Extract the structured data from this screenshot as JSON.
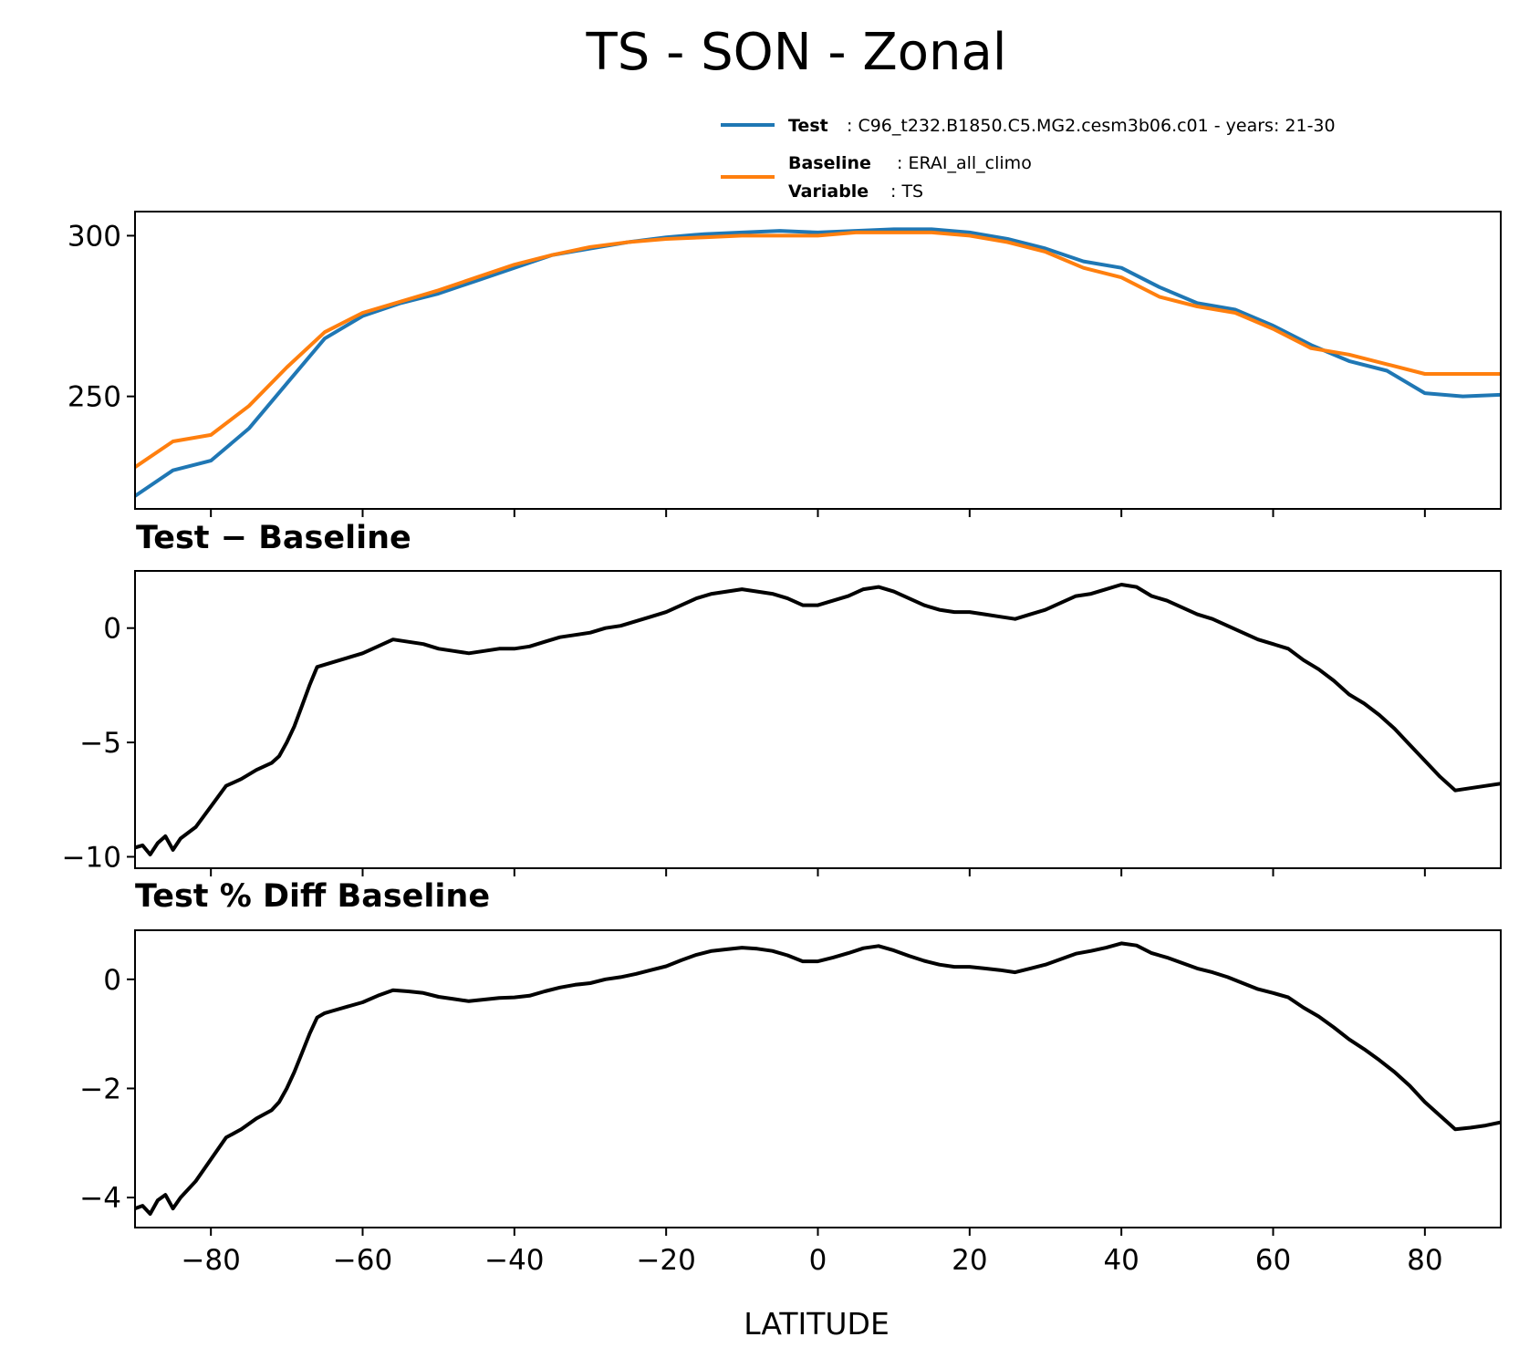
{
  "figure": {
    "title": "TS - SON - Zonal"
  },
  "legend": {
    "test_key": "Test",
    "test_value": ": C96_t232.B1850.C5.MG2.cesm3b06.c01 - years: 21-30",
    "baseline_key": "Baseline",
    "baseline_value": ": ERAI_all_climo",
    "variable_key": "Variable",
    "variable_value": ": TS"
  },
  "colors": {
    "test": "#1f77b4",
    "baseline": "#ff7f0e",
    "diff": "#000000"
  },
  "chart_data": [
    {
      "type": "line",
      "title": "",
      "xlabel": "",
      "ylabel": "",
      "xlim": [
        -90,
        90
      ],
      "ylim": [
        215,
        307.5
      ],
      "yticks": [
        250,
        300
      ],
      "grid": false,
      "legend_placement": "above plot, right",
      "x": [
        -90,
        -85,
        -80,
        -75,
        -70,
        -65,
        -60,
        -55,
        -50,
        -45,
        -40,
        -35,
        -30,
        -25,
        -20,
        -15,
        -10,
        -5,
        0,
        5,
        10,
        15,
        20,
        25,
        30,
        35,
        40,
        45,
        50,
        55,
        60,
        65,
        70,
        75,
        80,
        85,
        90
      ],
      "series": [
        {
          "name": "Test",
          "color": "#1f77b4",
          "values": [
            219,
            227,
            230,
            240,
            254,
            268,
            275,
            279,
            282,
            286,
            290,
            294,
            296,
            298,
            299.5,
            300.5,
            301,
            301.5,
            301,
            301.5,
            302,
            302,
            301,
            299,
            296,
            292,
            290,
            284,
            279,
            277,
            272,
            266,
            261,
            258,
            251,
            250,
            250.5
          ]
        },
        {
          "name": "Baseline",
          "color": "#ff7f0e",
          "values": [
            228,
            236,
            238,
            247,
            259,
            270,
            276,
            279.5,
            283,
            287,
            291,
            294,
            296.5,
            298,
            299,
            299.5,
            300,
            300,
            300,
            301,
            301,
            301,
            300,
            298,
            295,
            290,
            287,
            281,
            278,
            276,
            271,
            265,
            263,
            260,
            257,
            257,
            257
          ]
        }
      ]
    },
    {
      "type": "line",
      "title": "Test − Baseline",
      "xlabel": "",
      "ylabel": "",
      "xlim": [
        -90,
        90
      ],
      "ylim": [
        -10.5,
        2.5
      ],
      "yticks": [
        -10,
        -5,
        0
      ],
      "grid": false,
      "x": [
        -90,
        -89,
        -88,
        -87,
        -86,
        -85,
        -84,
        -82,
        -80,
        -78,
        -76,
        -74,
        -72,
        -71,
        -70,
        -69,
        -68,
        -67,
        -66,
        -65,
        -64,
        -62,
        -60,
        -58,
        -56,
        -54,
        -52,
        -50,
        -48,
        -46,
        -44,
        -42,
        -40,
        -38,
        -36,
        -34,
        -32,
        -30,
        -28,
        -26,
        -24,
        -22,
        -20,
        -18,
        -16,
        -14,
        -12,
        -10,
        -8,
        -6,
        -4,
        -2,
        0,
        2,
        4,
        6,
        8,
        10,
        12,
        14,
        16,
        18,
        20,
        22,
        24,
        26,
        28,
        30,
        32,
        34,
        36,
        38,
        40,
        42,
        44,
        46,
        48,
        50,
        52,
        54,
        56,
        58,
        60,
        62,
        64,
        66,
        68,
        70,
        72,
        74,
        76,
        78,
        80,
        82,
        84,
        86,
        88,
        90
      ],
      "series": [
        {
          "name": "",
          "color": "#000000",
          "values": [
            -9.6,
            -9.5,
            -9.9,
            -9.4,
            -9.1,
            -9.7,
            -9.2,
            -8.7,
            -7.8,
            -6.9,
            -6.6,
            -6.2,
            -5.9,
            -5.6,
            -5.0,
            -4.3,
            -3.4,
            -2.5,
            -1.7,
            -1.6,
            -1.5,
            -1.3,
            -1.1,
            -0.8,
            -0.5,
            -0.6,
            -0.7,
            -0.9,
            -1.0,
            -1.1,
            -1.0,
            -0.9,
            -0.9,
            -0.8,
            -0.6,
            -0.4,
            -0.3,
            -0.2,
            0.0,
            0.1,
            0.3,
            0.5,
            0.7,
            1.0,
            1.3,
            1.5,
            1.6,
            1.7,
            1.6,
            1.5,
            1.3,
            1.0,
            1.0,
            1.2,
            1.4,
            1.7,
            1.8,
            1.6,
            1.3,
            1.0,
            0.8,
            0.7,
            0.7,
            0.6,
            0.5,
            0.4,
            0.6,
            0.8,
            1.1,
            1.4,
            1.5,
            1.7,
            1.9,
            1.8,
            1.4,
            1.2,
            0.9,
            0.6,
            0.4,
            0.1,
            -0.2,
            -0.5,
            -0.7,
            -0.9,
            -1.4,
            -1.8,
            -2.3,
            -2.9,
            -3.3,
            -3.8,
            -4.4,
            -5.1,
            -5.8,
            -6.5,
            -7.1,
            -7.0,
            -6.9,
            -6.8
          ]
        }
      ]
    },
    {
      "type": "line",
      "title": "Test % Diff Baseline",
      "xlabel": "LATITUDE",
      "ylabel": "",
      "xlim": [
        -90,
        90
      ],
      "ylim": [
        -4.55,
        0.9
      ],
      "xticks": [
        -80,
        -60,
        -40,
        -20,
        0,
        20,
        40,
        60,
        80
      ],
      "yticks": [
        -4,
        -2,
        0
      ],
      "grid": false,
      "x": [
        -90,
        -89,
        -88,
        -87,
        -86,
        -85,
        -84,
        -82,
        -80,
        -78,
        -76,
        -74,
        -72,
        -71,
        -70,
        -69,
        -68,
        -67,
        -66,
        -65,
        -64,
        -62,
        -60,
        -58,
        -56,
        -54,
        -52,
        -50,
        -48,
        -46,
        -44,
        -42,
        -40,
        -38,
        -36,
        -34,
        -32,
        -30,
        -28,
        -26,
        -24,
        -22,
        -20,
        -18,
        -16,
        -14,
        -12,
        -10,
        -8,
        -6,
        -4,
        -2,
        0,
        2,
        4,
        6,
        8,
        10,
        12,
        14,
        16,
        18,
        20,
        22,
        24,
        26,
        28,
        30,
        32,
        34,
        36,
        38,
        40,
        42,
        44,
        46,
        48,
        50,
        52,
        54,
        56,
        58,
        60,
        62,
        64,
        66,
        68,
        70,
        72,
        74,
        76,
        78,
        80,
        82,
        84,
        86,
        88,
        90
      ],
      "series": [
        {
          "name": "",
          "color": "#000000",
          "values": [
            -4.2,
            -4.15,
            -4.3,
            -4.05,
            -3.95,
            -4.2,
            -4.0,
            -3.7,
            -3.3,
            -2.9,
            -2.75,
            -2.55,
            -2.4,
            -2.25,
            -2.0,
            -1.7,
            -1.35,
            -1.0,
            -0.7,
            -0.62,
            -0.58,
            -0.5,
            -0.42,
            -0.3,
            -0.2,
            -0.22,
            -0.25,
            -0.32,
            -0.36,
            -0.4,
            -0.37,
            -0.34,
            -0.33,
            -0.3,
            -0.22,
            -0.15,
            -0.1,
            -0.07,
            0.0,
            0.04,
            0.1,
            0.17,
            0.24,
            0.35,
            0.45,
            0.52,
            0.55,
            0.58,
            0.56,
            0.52,
            0.44,
            0.33,
            0.33,
            0.4,
            0.48,
            0.57,
            0.61,
            0.53,
            0.43,
            0.34,
            0.27,
            0.23,
            0.23,
            0.2,
            0.17,
            0.13,
            0.2,
            0.27,
            0.37,
            0.47,
            0.52,
            0.58,
            0.66,
            0.62,
            0.48,
            0.4,
            0.3,
            0.2,
            0.13,
            0.04,
            -0.07,
            -0.18,
            -0.25,
            -0.33,
            -0.52,
            -0.68,
            -0.88,
            -1.1,
            -1.28,
            -1.48,
            -1.7,
            -1.95,
            -2.25,
            -2.5,
            -2.75,
            -2.72,
            -2.68,
            -2.62
          ]
        }
      ]
    }
  ]
}
